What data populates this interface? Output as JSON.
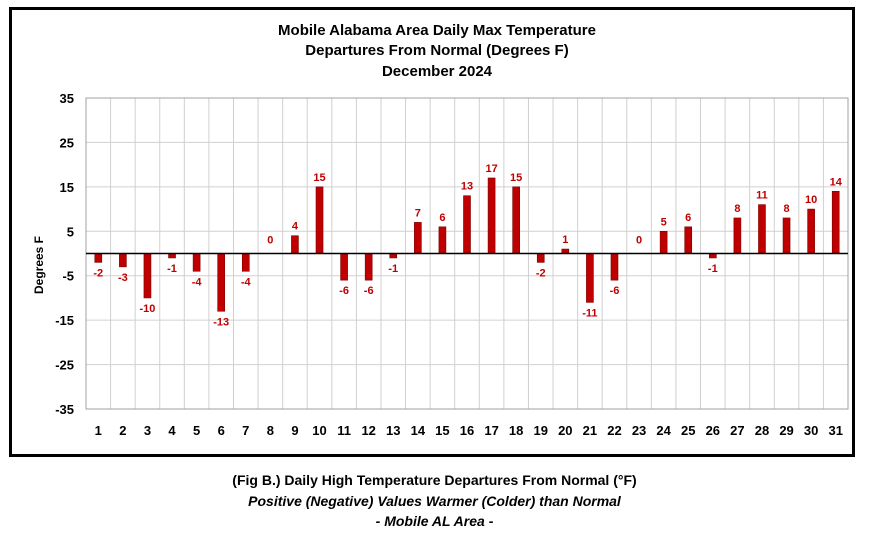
{
  "chart_data": {
    "type": "bar",
    "title": [
      "Mobile Alabama Area Daily Max Temperature",
      "Departures From Normal (Degrees F)",
      "December 2024"
    ],
    "ylabel": "Degrees F",
    "xlabel": "",
    "ylim": [
      -35,
      35
    ],
    "yticks": [
      35,
      25,
      15,
      5,
      -5,
      -15,
      -25,
      -35
    ],
    "grid": true,
    "bar_color": "#c00000",
    "categories": [
      "1",
      "2",
      "3",
      "4",
      "5",
      "6",
      "7",
      "8",
      "9",
      "10",
      "11",
      "12",
      "13",
      "14",
      "15",
      "16",
      "17",
      "18",
      "19",
      "20",
      "21",
      "22",
      "23",
      "24",
      "25",
      "26",
      "27",
      "28",
      "29",
      "30",
      "31"
    ],
    "values": [
      -2,
      -3,
      -10,
      -1,
      -4,
      -13,
      -4,
      0,
      4,
      15,
      -6,
      -6,
      -1,
      7,
      6,
      13,
      17,
      15,
      -2,
      1,
      -11,
      -6,
      0,
      5,
      6,
      -1,
      8,
      11,
      8,
      10,
      14
    ]
  },
  "caption": {
    "line1": "(Fig B.) Daily High Temperature Departures From Normal (°F)",
    "line2": "Positive (Negative) Values Warmer (Colder) than Normal",
    "line3": "- Mobile AL Area -"
  }
}
